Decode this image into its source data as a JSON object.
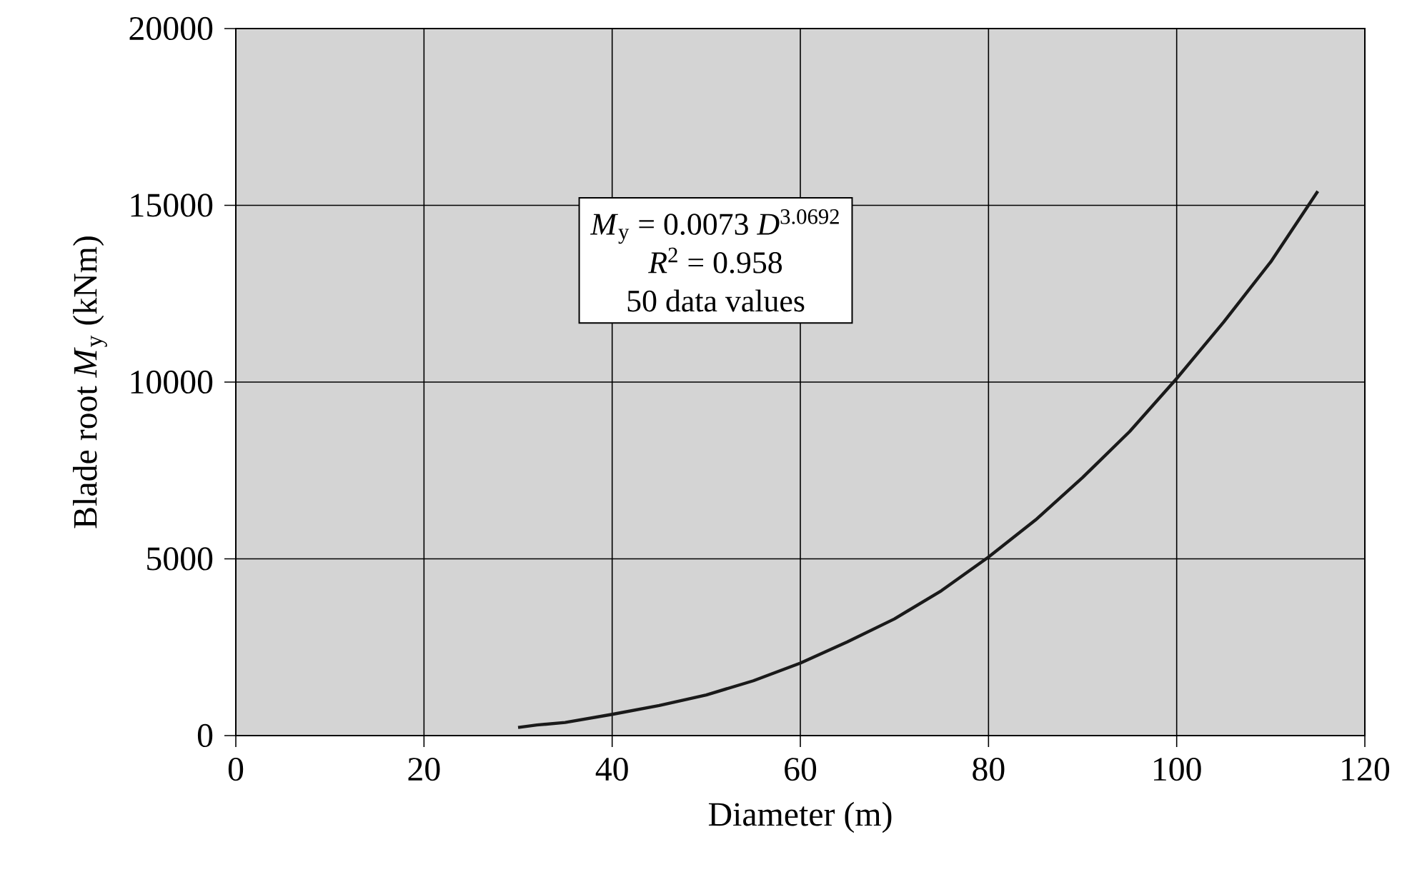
{
  "chart_data": {
    "type": "line",
    "xlabel": "Diameter (m)",
    "ylabel": "Blade root *M*$_{y}$ (kNm)",
    "annotations": [
      "*M*$_{y}$ = 0.0073 *D*$^{3.0692}$",
      "*R*$^{2}$ = 0.958",
      "50 data values"
    ],
    "x": [
      30,
      32,
      35,
      40,
      45,
      50,
      55,
      60,
      65,
      70,
      75,
      80,
      85,
      90,
      95,
      100,
      105,
      110,
      115
    ],
    "series": [
      {
        "color": "#1a1a1a",
        "values": [
          230,
          300,
          370,
          600,
          850,
          1150,
          1550,
          2050,
          2650,
          3300,
          4100,
          5050,
          6100,
          7300,
          8600,
          10100,
          11700,
          13400,
          15400
        ]
      }
    ],
    "xlim": [
      0,
      120
    ],
    "ylim": [
      0,
      20000
    ],
    "xticks": [
      0,
      20,
      40,
      60,
      80,
      100,
      120
    ],
    "yticks": [
      0,
      5000,
      10000,
      15000,
      20000
    ],
    "grid": true,
    "marker": "none",
    "line_style": "solid"
  }
}
